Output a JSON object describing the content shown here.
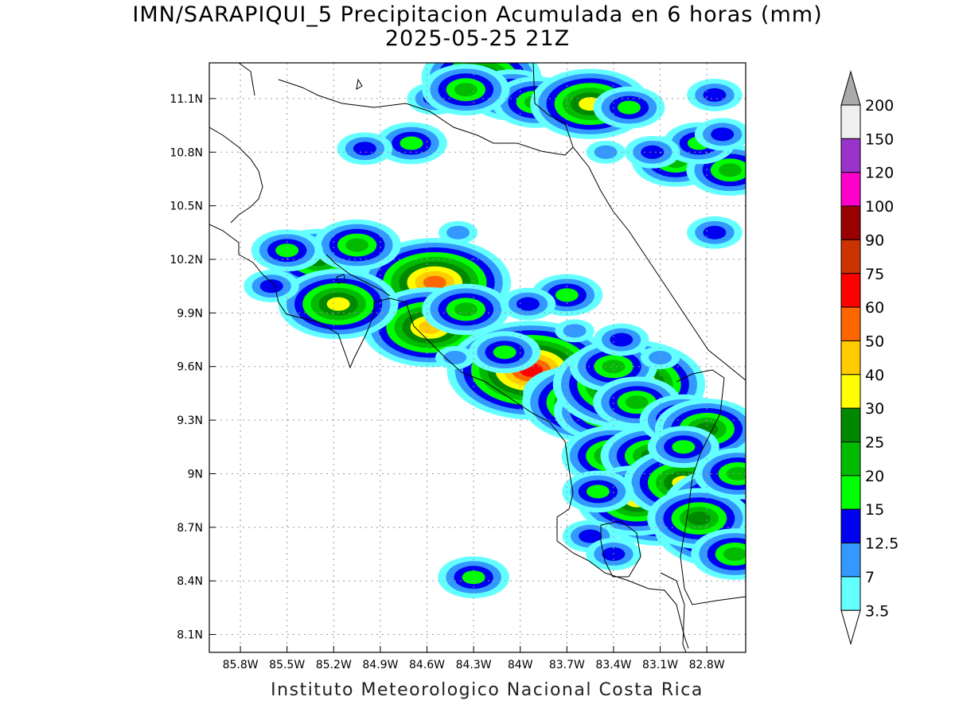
{
  "title": {
    "line1": "IMN/SARAPIQUI_5 Precipitacion Acumulada en 6 horas (mm)",
    "line2": "2025-05-25 21Z"
  },
  "footer": "Instituto Meteorologico Nacional Costa Rica",
  "map": {
    "lon_range": [
      -86.0,
      -82.55
    ],
    "lat_range": [
      8.0,
      11.3
    ],
    "x_tick_labels": [
      "85.8W",
      "85.5W",
      "85.2W",
      "84.9W",
      "84.6W",
      "84.3W",
      "84W",
      "83.7W",
      "83.4W",
      "83.1W",
      "82.8W"
    ],
    "x_tick_values": [
      -85.8,
      -85.5,
      -85.2,
      -84.9,
      -84.6,
      -84.3,
      -84.0,
      -83.7,
      -83.4,
      -83.1,
      -82.8
    ],
    "y_tick_labels": [
      "8.1N",
      "8.4N",
      "8.7N",
      "9N",
      "9.3N",
      "9.6N",
      "9.9N",
      "10.2N",
      "10.5N",
      "10.8N",
      "11.1N"
    ],
    "y_tick_values": [
      8.1,
      8.4,
      8.7,
      9.0,
      9.3,
      9.6,
      9.9,
      10.2,
      10.5,
      10.8,
      11.1
    ],
    "grid": true
  },
  "colorbar": {
    "labels": [
      "3.5",
      "7",
      "12.5",
      "15",
      "20",
      "25",
      "30",
      "40",
      "50",
      "60",
      "75",
      "90",
      "100",
      "120",
      "150",
      "200"
    ],
    "colors": [
      "#ffffff",
      "#64ffff",
      "#3399ff",
      "#0000f0",
      "#00ff00",
      "#00bb00",
      "#008800",
      "#ffff00",
      "#ffcc00",
      "#ff6600",
      "#ff0000",
      "#cc3300",
      "#990000",
      "#ff00cc",
      "#9933cc",
      "#f0f0f0",
      "#aaaaaa"
    ]
  },
  "rain_cells": [
    {
      "lon": -84.4,
      "lat": 10.35,
      "level": 2
    },
    {
      "lon": -85.1,
      "lat": 10.25,
      "level": 2
    },
    {
      "lon": -84.45,
      "lat": 10.0,
      "level": 3
    },
    {
      "lon": -84.55,
      "lat": 10.05,
      "level": 6
    },
    {
      "lon": -84.55,
      "lat": 10.07,
      "level": 9
    },
    {
      "lon": -84.58,
      "lat": 9.82,
      "level": 8
    },
    {
      "lon": -84.35,
      "lat": 9.92,
      "level": 5
    },
    {
      "lon": -85.3,
      "lat": 10.2,
      "level": 6
    },
    {
      "lon": -85.17,
      "lat": 9.95,
      "level": 7
    },
    {
      "lon": -85.05,
      "lat": 10.28,
      "level": 5
    },
    {
      "lon": -85.5,
      "lat": 10.25,
      "level": 4
    },
    {
      "lon": -85.6,
      "lat": 10.05,
      "level": 3
    },
    {
      "lon": -84.0,
      "lat": 9.6,
      "level": 6
    },
    {
      "lon": -83.85,
      "lat": 9.6,
      "level": 7
    },
    {
      "lon": -83.93,
      "lat": 9.58,
      "level": 10
    },
    {
      "lon": -84.1,
      "lat": 9.68,
      "level": 4
    },
    {
      "lon": -83.7,
      "lat": 9.45,
      "level": 5
    },
    {
      "lon": -83.55,
      "lat": 9.4,
      "level": 8
    },
    {
      "lon": -83.45,
      "lat": 9.35,
      "level": 6
    },
    {
      "lon": -83.3,
      "lat": 9.5,
      "level": 9
    },
    {
      "lon": -83.4,
      "lat": 9.6,
      "level": 5
    },
    {
      "lon": -83.25,
      "lat": 9.4,
      "level": 5
    },
    {
      "lon": -83.4,
      "lat": 9.1,
      "level": 6
    },
    {
      "lon": -83.15,
      "lat": 9.1,
      "level": 6
    },
    {
      "lon": -82.95,
      "lat": 9.3,
      "level": 5
    },
    {
      "lon": -82.8,
      "lat": 9.25,
      "level": 6
    },
    {
      "lon": -83.1,
      "lat": 8.82,
      "level": 8
    },
    {
      "lon": -83.25,
      "lat": 8.85,
      "level": 7
    },
    {
      "lon": -82.95,
      "lat": 8.95,
      "level": 7
    },
    {
      "lon": -82.6,
      "lat": 8.8,
      "level": 9
    },
    {
      "lon": -82.7,
      "lat": 8.7,
      "level": 8
    },
    {
      "lon": -82.85,
      "lat": 8.75,
      "level": 6
    },
    {
      "lon": -82.62,
      "lat": 8.55,
      "level": 5
    },
    {
      "lon": -82.6,
      "lat": 9.0,
      "level": 5
    },
    {
      "lon": -83.5,
      "lat": 8.9,
      "level": 4
    },
    {
      "lon": -83.55,
      "lat": 8.65,
      "level": 3
    },
    {
      "lon": -83.4,
      "lat": 8.55,
      "level": 3
    },
    {
      "lon": -83.35,
      "lat": 9.75,
      "level": 3
    },
    {
      "lon": -84.3,
      "lat": 8.42,
      "level": 4
    },
    {
      "lon": -84.42,
      "lat": 9.65,
      "level": 2
    },
    {
      "lon": -83.7,
      "lat": 10.0,
      "level": 4
    },
    {
      "lon": -83.95,
      "lat": 9.95,
      "level": 3
    },
    {
      "lon": -84.25,
      "lat": 11.22,
      "level": 7
    },
    {
      "lon": -84.05,
      "lat": 11.12,
      "level": 5
    },
    {
      "lon": -83.9,
      "lat": 11.08,
      "level": 5
    },
    {
      "lon": -83.55,
      "lat": 11.07,
      "level": 7
    },
    {
      "lon": -83.3,
      "lat": 11.05,
      "level": 4
    },
    {
      "lon": -84.7,
      "lat": 10.85,
      "level": 4
    },
    {
      "lon": -85.0,
      "lat": 10.82,
      "level": 3
    },
    {
      "lon": -83.0,
      "lat": 10.75,
      "level": 5
    },
    {
      "lon": -82.65,
      "lat": 10.7,
      "level": 5
    },
    {
      "lon": -82.85,
      "lat": 10.85,
      "level": 4
    },
    {
      "lon": -82.7,
      "lat": 10.9,
      "level": 3
    },
    {
      "lon": -83.15,
      "lat": 10.8,
      "level": 3
    },
    {
      "lon": -84.55,
      "lat": 11.1,
      "level": 3
    },
    {
      "lon": -84.35,
      "lat": 11.15,
      "level": 5
    },
    {
      "lon": -82.75,
      "lat": 10.35,
      "level": 3
    },
    {
      "lon": -82.75,
      "lat": 11.12,
      "level": 3
    },
    {
      "lon": -83.45,
      "lat": 10.8,
      "level": 2
    },
    {
      "lon": -83.1,
      "lat": 9.65,
      "level": 2
    },
    {
      "lon": -82.95,
      "lat": 9.15,
      "level": 4
    },
    {
      "lon": -83.65,
      "lat": 9.8,
      "level": 2
    }
  ]
}
